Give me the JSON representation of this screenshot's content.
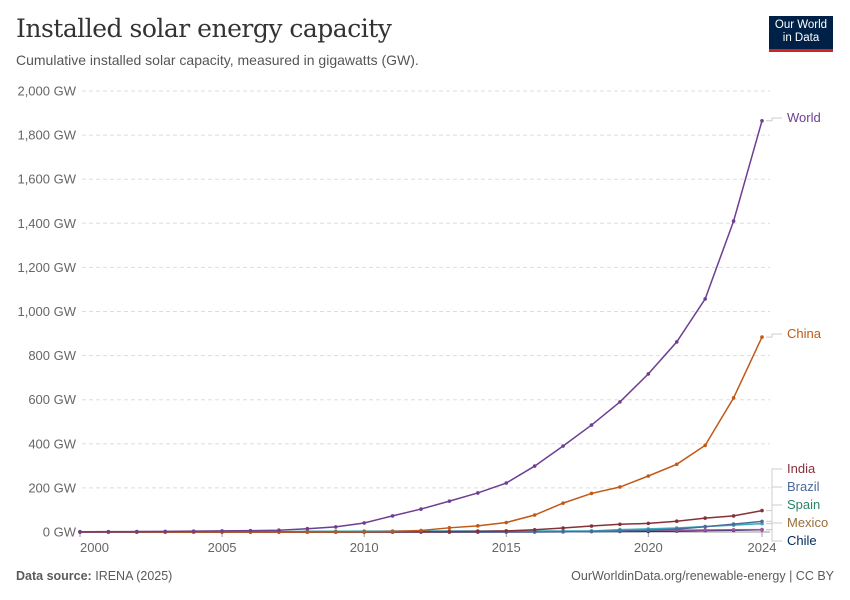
{
  "header": {
    "title": "Installed solar energy capacity",
    "subtitle": "Cumulative installed solar capacity, measured in gigawatts (GW).",
    "logo": "Our World in Data"
  },
  "footer": {
    "source_label": "Data source:",
    "source": "IRENA (2025)",
    "link": "OurWorldinData.org/renewable-energy | CC BY"
  },
  "chart_data": {
    "type": "line",
    "title": "Installed solar energy capacity",
    "subtitle": "Cumulative installed solar capacity, measured in gigawatts (GW).",
    "x": [
      2000,
      2001,
      2002,
      2003,
      2004,
      2005,
      2006,
      2007,
      2008,
      2009,
      2010,
      2011,
      2012,
      2013,
      2014,
      2015,
      2016,
      2017,
      2018,
      2019,
      2020,
      2021,
      2022,
      2023,
      2024
    ],
    "xlim": [
      2000,
      2024
    ],
    "ylim": [
      0,
      2000
    ],
    "x_ticks": [
      "2000",
      "2005",
      "2010",
      "2015",
      "2020",
      "2024"
    ],
    "y_ticks": [
      "0 GW",
      "200 GW",
      "400 GW",
      "600 GW",
      "800 GW",
      "1,000 GW",
      "1,200 GW",
      "1,400 GW",
      "1,600 GW",
      "1,800 GW",
      "2,000 GW"
    ],
    "grid": "horizontal dashed",
    "legend": "right, line-end labels",
    "series": [
      {
        "name": "World",
        "color": "#6d3e91",
        "values": [
          1.2,
          1.5,
          2,
          2.6,
          3.7,
          5,
          6,
          8,
          15,
          23,
          41,
          73,
          104,
          140,
          177,
          222,
          299,
          390,
          485,
          590,
          717,
          862,
          1057,
          1410,
          1865
        ]
      },
      {
        "name": "China",
        "color": "#c05917",
        "values": [
          0.02,
          0.03,
          0.04,
          0.05,
          0.06,
          0.07,
          0.08,
          0.1,
          0.14,
          0.4,
          1,
          3,
          6.7,
          19,
          28,
          43,
          77,
          131,
          175,
          204,
          254,
          307,
          393,
          608,
          884
        ]
      },
      {
        "name": "India",
        "color": "#883039",
        "values": [
          0,
          0,
          0,
          0,
          0,
          0,
          0,
          0,
          0,
          0,
          0.1,
          0.6,
          1,
          1.5,
          3,
          5,
          10,
          18,
          27,
          35,
          39,
          49,
          63,
          73,
          97
        ]
      },
      {
        "name": "Brazil",
        "color": "#4c6a9c",
        "values": [
          0,
          0,
          0,
          0,
          0,
          0,
          0,
          0,
          0,
          0,
          0,
          0,
          0,
          0,
          0,
          0,
          0.1,
          1.1,
          2.4,
          4.6,
          7.9,
          13,
          24,
          36,
          48
        ]
      },
      {
        "name": "Spain",
        "color": "#38aaba",
        "values": [
          0,
          0,
          0,
          0,
          0,
          0,
          0.2,
          0.7,
          3.4,
          3.6,
          4.1,
          4.3,
          4.5,
          4.6,
          4.7,
          4.7,
          4.7,
          4.7,
          4.8,
          11,
          14,
          18,
          25,
          31,
          38
        ]
      },
      {
        "name": "Mexico",
        "color": "#a2559c",
        "values": [
          0,
          0,
          0,
          0,
          0,
          0,
          0,
          0,
          0,
          0,
          0,
          0,
          0,
          0.1,
          0.1,
          0.2,
          0.4,
          0.7,
          3,
          5,
          7,
          8,
          9,
          10,
          11
        ]
      },
      {
        "name": "Chile",
        "color": "#00295b",
        "values": [
          0,
          0,
          0,
          0,
          0,
          0,
          0,
          0,
          0,
          0,
          0,
          0,
          0,
          0.1,
          0.2,
          0.6,
          1.1,
          1.8,
          2.4,
          2.9,
          3.2,
          4.4,
          7,
          8,
          10
        ]
      }
    ],
    "label_colors": {
      "World": "#6d3e91",
      "China": "#c05917",
      "India": "#883039",
      "Brazil": "#4c6a9c",
      "Spain": "#2c8465",
      "Mexico": "#996d39",
      "Chile": "#00295b"
    }
  }
}
